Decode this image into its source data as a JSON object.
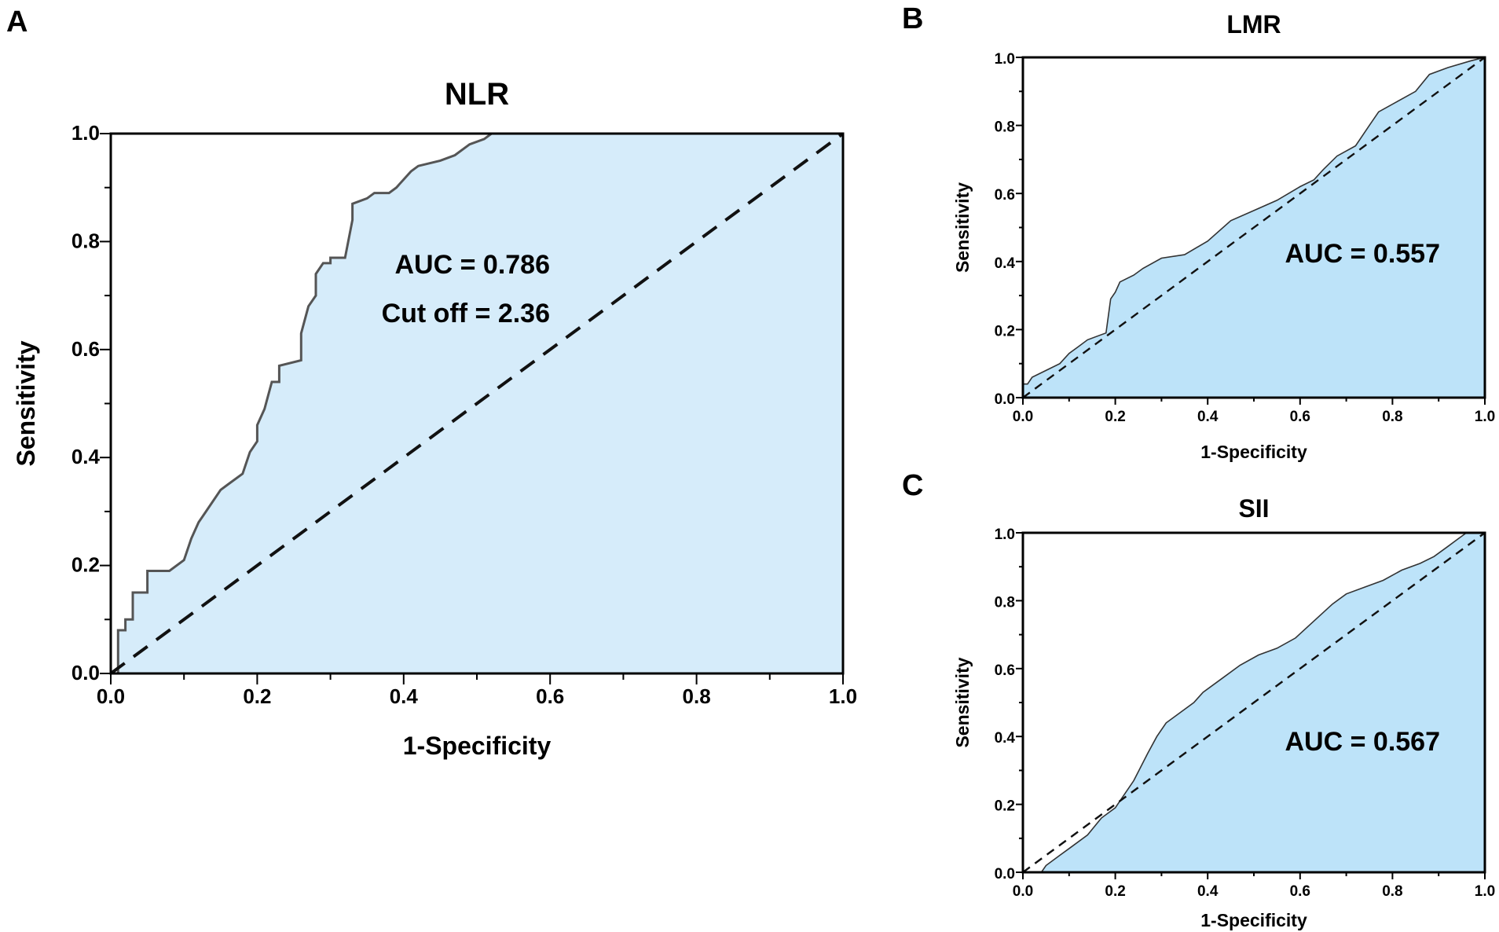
{
  "chart_data": [
    {
      "panel": "A",
      "type": "area",
      "title": "NLR",
      "xlabel": "1-Specificity",
      "ylabel": "Sensitivity",
      "xlim": [
        0.0,
        1.0
      ],
      "ylim": [
        0.0,
        1.0
      ],
      "xticks": [
        "0.0",
        "0.2",
        "0.4",
        "0.6",
        "0.8",
        "1.0"
      ],
      "yticks": [
        "0.0",
        "0.2",
        "0.4",
        "0.6",
        "0.8",
        "1.0"
      ],
      "annotations": [
        "AUC = 0.786",
        "Cut off = 2.36"
      ],
      "fill_color": "#d6ecfa",
      "line_color": "#555555",
      "reference_line": "dashed diagonal",
      "roc": [
        [
          0.0,
          0.0
        ],
        [
          0.01,
          0.0
        ],
        [
          0.01,
          0.08
        ],
        [
          0.02,
          0.08
        ],
        [
          0.02,
          0.1
        ],
        [
          0.03,
          0.1
        ],
        [
          0.03,
          0.15
        ],
        [
          0.05,
          0.15
        ],
        [
          0.05,
          0.19
        ],
        [
          0.08,
          0.19
        ],
        [
          0.1,
          0.21
        ],
        [
          0.11,
          0.25
        ],
        [
          0.12,
          0.28
        ],
        [
          0.13,
          0.3
        ],
        [
          0.15,
          0.34
        ],
        [
          0.16,
          0.35
        ],
        [
          0.18,
          0.37
        ],
        [
          0.19,
          0.41
        ],
        [
          0.2,
          0.43
        ],
        [
          0.2,
          0.46
        ],
        [
          0.21,
          0.49
        ],
        [
          0.22,
          0.54
        ],
        [
          0.23,
          0.54
        ],
        [
          0.23,
          0.57
        ],
        [
          0.26,
          0.58
        ],
        [
          0.26,
          0.63
        ],
        [
          0.27,
          0.68
        ],
        [
          0.28,
          0.7
        ],
        [
          0.28,
          0.74
        ],
        [
          0.29,
          0.76
        ],
        [
          0.3,
          0.76
        ],
        [
          0.3,
          0.77
        ],
        [
          0.32,
          0.77
        ],
        [
          0.33,
          0.84
        ],
        [
          0.33,
          0.87
        ],
        [
          0.35,
          0.88
        ],
        [
          0.36,
          0.89
        ],
        [
          0.38,
          0.89
        ],
        [
          0.39,
          0.9
        ],
        [
          0.41,
          0.93
        ],
        [
          0.42,
          0.94
        ],
        [
          0.45,
          0.95
        ],
        [
          0.47,
          0.96
        ],
        [
          0.49,
          0.98
        ],
        [
          0.51,
          0.99
        ],
        [
          0.52,
          1.0
        ],
        [
          0.76,
          1.0
        ],
        [
          1.0,
          1.0
        ]
      ]
    },
    {
      "panel": "B",
      "type": "area",
      "title": "LMR",
      "xlabel": "1-Specificity",
      "ylabel": "Sensitivity",
      "xlim": [
        0.0,
        1.0
      ],
      "ylim": [
        0.0,
        1.0
      ],
      "xticks": [
        "0.0",
        "0.2",
        "0.4",
        "0.6",
        "0.8",
        "1.0"
      ],
      "yticks": [
        "0.0",
        "0.2",
        "0.4",
        "0.6",
        "0.8",
        "1.0"
      ],
      "annotations": [
        "AUC = 0.557"
      ],
      "fill_color": "#bde3f9",
      "line_color": "#333333",
      "reference_line": "dashed diagonal",
      "roc": [
        [
          0.0,
          0.0
        ],
        [
          0.0,
          0.04
        ],
        [
          0.01,
          0.04
        ],
        [
          0.02,
          0.06
        ],
        [
          0.05,
          0.08
        ],
        [
          0.08,
          0.1
        ],
        [
          0.1,
          0.13
        ],
        [
          0.12,
          0.15
        ],
        [
          0.14,
          0.17
        ],
        [
          0.18,
          0.19
        ],
        [
          0.19,
          0.29
        ],
        [
          0.2,
          0.31
        ],
        [
          0.21,
          0.34
        ],
        [
          0.24,
          0.36
        ],
        [
          0.26,
          0.38
        ],
        [
          0.3,
          0.41
        ],
        [
          0.35,
          0.42
        ],
        [
          0.4,
          0.46
        ],
        [
          0.45,
          0.52
        ],
        [
          0.5,
          0.55
        ],
        [
          0.55,
          0.58
        ],
        [
          0.6,
          0.62
        ],
        [
          0.63,
          0.64
        ],
        [
          0.65,
          0.67
        ],
        [
          0.68,
          0.71
        ],
        [
          0.72,
          0.74
        ],
        [
          0.75,
          0.8
        ],
        [
          0.77,
          0.84
        ],
        [
          0.81,
          0.87
        ],
        [
          0.85,
          0.9
        ],
        [
          0.88,
          0.95
        ],
        [
          0.92,
          0.97
        ],
        [
          0.97,
          0.99
        ],
        [
          1.0,
          1.0
        ]
      ]
    },
    {
      "panel": "C",
      "type": "area",
      "title": "SII",
      "xlabel": "1-Specificity",
      "ylabel": "Sensitivity",
      "xlim": [
        0.0,
        1.0
      ],
      "ylim": [
        0.0,
        1.0
      ],
      "xticks": [
        "0.0",
        "0.2",
        "0.4",
        "0.6",
        "0.8",
        "1.0"
      ],
      "yticks": [
        "0.0",
        "0.2",
        "0.4",
        "0.6",
        "0.8",
        "1.0"
      ],
      "annotations": [
        "AUC = 0.567"
      ],
      "fill_color": "#bde3f9",
      "line_color": "#333333",
      "reference_line": "dashed diagonal",
      "roc": [
        [
          0.0,
          0.0
        ],
        [
          0.04,
          0.0
        ],
        [
          0.05,
          0.02
        ],
        [
          0.08,
          0.05
        ],
        [
          0.1,
          0.07
        ],
        [
          0.14,
          0.11
        ],
        [
          0.17,
          0.16
        ],
        [
          0.2,
          0.19
        ],
        [
          0.22,
          0.23
        ],
        [
          0.24,
          0.27
        ],
        [
          0.27,
          0.35
        ],
        [
          0.29,
          0.4
        ],
        [
          0.31,
          0.44
        ],
        [
          0.34,
          0.47
        ],
        [
          0.37,
          0.5
        ],
        [
          0.39,
          0.53
        ],
        [
          0.43,
          0.57
        ],
        [
          0.47,
          0.61
        ],
        [
          0.51,
          0.64
        ],
        [
          0.55,
          0.66
        ],
        [
          0.59,
          0.69
        ],
        [
          0.63,
          0.74
        ],
        [
          0.67,
          0.79
        ],
        [
          0.7,
          0.82
        ],
        [
          0.74,
          0.84
        ],
        [
          0.78,
          0.86
        ],
        [
          0.82,
          0.89
        ],
        [
          0.86,
          0.91
        ],
        [
          0.89,
          0.93
        ],
        [
          0.92,
          0.96
        ],
        [
          0.94,
          0.98
        ],
        [
          0.96,
          1.0
        ],
        [
          1.0,
          1.0
        ]
      ]
    }
  ]
}
